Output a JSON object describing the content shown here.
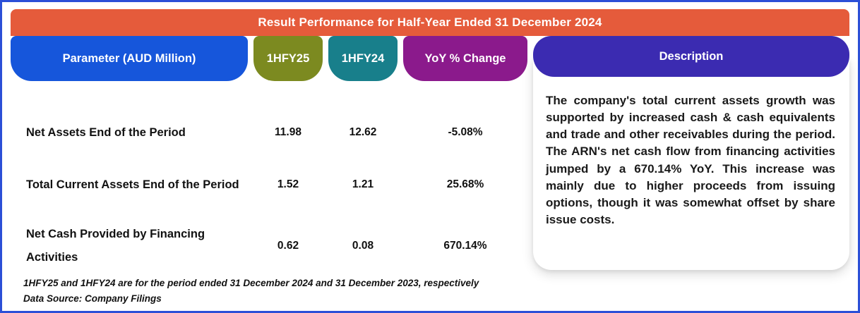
{
  "banner": {
    "title": "Result Performance for Half-Year Ended 31 December 2024"
  },
  "columns": {
    "parameter": "Parameter (AUD Million)",
    "hfy25": "1HFY25",
    "hfy24": "1HFY24",
    "yoy": "YoY % Change",
    "description": "Description"
  },
  "table": {
    "rows": [
      {
        "parameter": "Net Assets End of the Period",
        "hfy25": "11.98",
        "hfy24": "12.62",
        "yoy": "-5.08%"
      },
      {
        "parameter": "Total Current Assets End of the Period",
        "hfy25": "1.52",
        "hfy24": "1.21",
        "yoy": "25.68%"
      },
      {
        "parameter": "Net Cash Provided by Financing Activities",
        "hfy25": "0.62",
        "hfy24": "0.08",
        "yoy": "670.14%"
      }
    ]
  },
  "description_text": "The company's total current assets growth was supported by increased cash & cash equivalents and trade and other receivables during the period. The ARN's net cash flow from financing activities jumped by a 670.14% YoY. This increase was mainly due to higher proceeds from issuing options, though it was somewhat offset by share issue costs.",
  "footnotes": {
    "line1": "1HFY25 and 1HFY24 are for the period ended 31 December 2024 and 31 December 2023, respectively",
    "line2": "Data Source: Company Filings"
  },
  "colors": {
    "frame_border": "#2B4FD7",
    "banner": "#E55B3B",
    "parameter_header": "#1656DB",
    "hfy25_header": "#7C8A20",
    "hfy24_header": "#187F8B",
    "yoy_header": "#8B1A8C",
    "description_header": "#3B2BB1"
  },
  "chart_data": {
    "type": "table",
    "title": "Result Performance for Half-Year Ended 31 December 2024",
    "columns": [
      "Parameter (AUD Million)",
      "1HFY25",
      "1HFY24",
      "YoY % Change"
    ],
    "rows": [
      [
        "Net Assets End of the Period",
        11.98,
        12.62,
        "-5.08%"
      ],
      [
        "Total Current Assets End of the Period",
        1.52,
        1.21,
        "25.68%"
      ],
      [
        "Net Cash Provided by Financing Activities",
        0.62,
        0.08,
        "670.14%"
      ]
    ],
    "notes": [
      "1HFY25 and 1HFY24 are for the period ended 31 December 2024 and 31 December 2023, respectively",
      "Data Source: Company Filings"
    ]
  }
}
